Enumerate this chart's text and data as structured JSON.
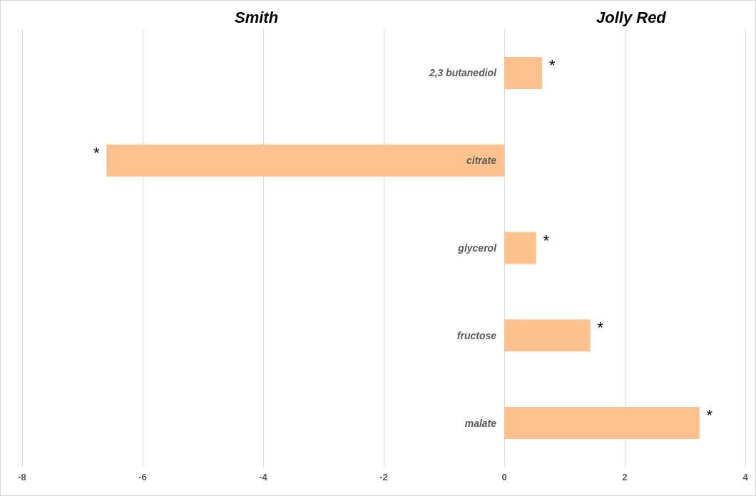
{
  "chart_data": {
    "type": "bar",
    "orientation": "horizontal",
    "categories": [
      "2,3 butanediol",
      "citrate",
      "glycerol",
      "fructose",
      "malate"
    ],
    "values": [
      0.63,
      -6.6,
      0.53,
      1.43,
      3.24
    ],
    "color": "#ffc28e",
    "xlim": [
      -8,
      4
    ],
    "xticks": [
      -8,
      -6,
      -4,
      -2,
      0,
      2,
      4
    ],
    "grid": "x",
    "annotations": [
      "Smith",
      "Jolly Red",
      {
        "text": "*",
        "x": 0.63,
        "y": "2,3 butanediol"
      },
      {
        "text": "*",
        "x": -6.6,
        "y": "citrate"
      },
      {
        "text": "*",
        "x": 0.53,
        "y": "glycerol"
      },
      {
        "text": "*",
        "x": 1.43,
        "y": "fructose"
      },
      {
        "text": "*",
        "x": 3.24,
        "y": "malate"
      }
    ]
  }
}
